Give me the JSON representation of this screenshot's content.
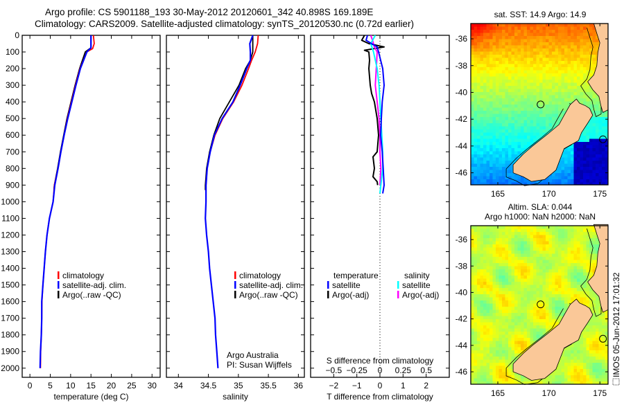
{
  "header": {
    "title_line1": "Argo profile: CS 5901188_193 30-May-2012 20120601_342 40.898S 169.189E",
    "title_line2": "Climatology: CARS2009. Satellite-adjusted climatology: synTS_20120530.nc (0.72d earlier)"
  },
  "colors": {
    "climatology": "#ff0000",
    "satellite": "#0000ff",
    "argo": "#000000",
    "sal_satellite": "#00ffff",
    "sal_argo": "#ff00ff",
    "land": "#fac898"
  },
  "chart_data": [
    {
      "type": "line",
      "id": "temperature",
      "xlabel": "temperature (deg C)",
      "xlim": [
        -1.9,
        32
      ],
      "xticks": [
        0,
        5,
        10,
        15,
        20,
        25,
        30
      ],
      "ylabel": "",
      "ylim": [
        0,
        2055
      ],
      "yticks": [
        0,
        100,
        200,
        300,
        400,
        500,
        600,
        700,
        800,
        900,
        1000,
        1100,
        1200,
        1300,
        1400,
        1500,
        1600,
        1700,
        1800,
        1900,
        2000
      ],
      "yreversed": true,
      "legend": [
        "climatology",
        "satellite-adj. clim.",
        "Argo(..raw -QC)"
      ],
      "series": [
        {
          "name": "climatology",
          "depth": [
            0,
            50,
            80,
            100,
            200,
            300,
            400,
            500,
            600,
            700,
            800,
            900,
            1000,
            1100,
            1200,
            1300,
            1400,
            1500,
            1600,
            1700,
            1800,
            1900,
            2000
          ],
          "values": [
            15.6,
            15.8,
            15.4,
            14.0,
            12.3,
            11.2,
            10.2,
            9.2,
            8.4,
            7.6,
            6.9,
            6.0,
            5.7,
            4.8,
            4.2,
            3.8,
            3.5,
            3.2,
            2.95,
            2.9,
            2.8,
            2.65,
            2.6
          ]
        },
        {
          "name": "satellite-adj. clim.",
          "depth": [
            0,
            75,
            100,
            200,
            300,
            400,
            500,
            600,
            700,
            800,
            900,
            1000,
            1100,
            1200,
            1300,
            1400,
            1500,
            1600,
            1700,
            1800,
            1900,
            2000
          ],
          "values": [
            15.0,
            15.0,
            14.0,
            12.4,
            11.3,
            10.3,
            9.3,
            8.4,
            7.6,
            6.9,
            6.1,
            5.7,
            4.8,
            4.2,
            3.8,
            3.5,
            3.2,
            2.9,
            2.9,
            2.8,
            2.6,
            2.5
          ]
        },
        {
          "name": "Argo(..raw -QC)",
          "depth": [
            0,
            75,
            100,
            200,
            300,
            400,
            500,
            600,
            700,
            800,
            900,
            930
          ],
          "values": [
            15.0,
            15.0,
            13.6,
            12.2,
            11.1,
            10.1,
            9.1,
            8.3,
            7.5,
            6.8,
            6.0,
            5.9
          ]
        }
      ]
    },
    {
      "type": "line",
      "id": "salinity",
      "xlabel": "salinity",
      "xlim": [
        33.8,
        36.1
      ],
      "xticks": [
        34,
        34.5,
        35,
        35.5,
        36
      ],
      "ylim": [
        0,
        2055
      ],
      "yreversed": true,
      "legend": [
        "climatology",
        "satellite-adj. clim.",
        "Argo(..raw -QC)"
      ],
      "annotation": [
        "Argo Australia",
        "PI: Susan Wijffels"
      ],
      "series": [
        {
          "name": "climatology",
          "depth": [
            0,
            50,
            100,
            150,
            200,
            300,
            400,
            500,
            600,
            700,
            800,
            900,
            1000
          ],
          "values": [
            35.33,
            35.32,
            35.28,
            35.22,
            35.17,
            35.06,
            34.92,
            34.74,
            34.61,
            34.53,
            34.48,
            34.46,
            34.46
          ]
        },
        {
          "name": "satellite-adj. clim.",
          "depth": [
            0,
            50,
            100,
            150,
            200,
            300,
            400,
            500,
            600,
            700,
            800,
            900,
            1000,
            1100,
            1200,
            1300,
            1400,
            1500,
            1600,
            1700,
            1800,
            1900,
            2000
          ],
          "values": [
            35.24,
            35.19,
            35.2,
            35.2,
            35.14,
            35.03,
            34.91,
            34.73,
            34.6,
            34.53,
            34.48,
            34.46,
            34.46,
            34.45,
            34.47,
            34.5,
            34.52,
            34.55,
            34.58,
            34.61,
            34.62,
            34.64,
            34.66
          ]
        },
        {
          "name": "Argo(..raw -QC)",
          "depth": [
            0,
            50,
            100,
            150,
            200,
            300,
            400,
            500,
            600,
            700,
            800,
            900,
            930
          ],
          "values": [
            35.24,
            35.24,
            35.24,
            35.2,
            35.12,
            35.01,
            34.85,
            34.69,
            34.59,
            34.52,
            34.47,
            34.45,
            34.45
          ]
        }
      ]
    },
    {
      "type": "line",
      "id": "difference",
      "xlabel": "T difference from climatology",
      "xlim": [
        -3,
        3
      ],
      "xticks": [
        -2,
        -1,
        0,
        1,
        2
      ],
      "x2label": "S difference from climatology",
      "x2lim": [
        -0.75,
        0.75
      ],
      "x2ticks": [
        -0.5,
        -0.25,
        0,
        0.25,
        0.5
      ],
      "ylim": [
        0,
        2055
      ],
      "yreversed": true,
      "legend_titles": [
        "temperature",
        "salinity"
      ],
      "legend": [
        "satellite",
        "Argo(-adj)",
        "satellite",
        "Argo(-adj)"
      ],
      "series": [
        {
          "name": "T satellite",
          "axis": "T",
          "depth": [
            0,
            30,
            70,
            100,
            200,
            300,
            400,
            500,
            600,
            700,
            800,
            900,
            950
          ],
          "values": [
            -0.54,
            -0.6,
            -0.12,
            -0.06,
            0.12,
            0.18,
            0.1,
            0.06,
            0.03,
            0.1,
            0.14,
            0.18,
            0.12
          ]
        },
        {
          "name": "T Argo(-adj)",
          "axis": "T",
          "depth": [
            0,
            30,
            50,
            70,
            90,
            100,
            150,
            200,
            300,
            350,
            400,
            500,
            600,
            700,
            730,
            800,
            850,
            880,
            900
          ],
          "values": [
            -0.67,
            -0.79,
            -0.48,
            0.18,
            -0.67,
            -0.48,
            -0.45,
            -0.48,
            -0.42,
            -0.36,
            -0.24,
            -0.12,
            -0.06,
            -0.12,
            -0.3,
            -0.24,
            -0.3,
            -0.12,
            -0.1
          ]
        },
        {
          "name": "S satellite",
          "axis": "S",
          "depth": [
            0,
            50,
            100,
            200,
            300,
            400,
            500,
            600,
            700,
            800,
            900,
            950
          ],
          "values": [
            -0.05,
            -0.1,
            -0.07,
            -0.03,
            -0.01,
            0.0,
            0.01,
            0.02,
            0.03,
            0.03,
            0.01,
            0.0
          ]
        },
        {
          "name": "S Argo(-adj)",
          "axis": "S",
          "depth": [
            0,
            30,
            70,
            100,
            200,
            300,
            400,
            500,
            600,
            700,
            800,
            900
          ],
          "values": [
            -0.1,
            -0.08,
            -0.06,
            -0.03,
            -0.04,
            -0.05,
            -0.03,
            -0.01,
            0.0,
            0.0,
            0.01,
            0.0
          ]
        }
      ]
    },
    {
      "type": "heatmap",
      "id": "sst-map",
      "title": "sat. SST: 14.9 Argo: 14.9",
      "xlim": [
        162.35,
        175.8
      ],
      "ylim": [
        -46.9,
        -34.86
      ],
      "xticks": [
        165,
        170,
        175
      ],
      "yticks": [
        -36,
        -38,
        -40,
        -42,
        -44,
        -46
      ],
      "argo_position": [
        169.19,
        -40.9
      ],
      "marker2": [
        175.3,
        -43.5
      ]
    },
    {
      "type": "heatmap",
      "id": "sla-map",
      "title_line1": "Altim. SLA: 0.044",
      "title_line2": "Argo h1000: NaN h2000: NaN",
      "xlim": [
        162.35,
        175.8
      ],
      "ylim": [
        -46.94,
        -34.95
      ],
      "xticks": [
        165,
        170,
        175
      ],
      "yticks": [
        -36,
        -38,
        -40,
        -42,
        -44,
        -46
      ],
      "argo_position": [
        169.19,
        -40.9
      ],
      "marker2": [
        175.3,
        -43.5
      ]
    }
  ],
  "coast": {
    "south_island": [
      [
        172.7,
        -40.5
      ],
      [
        173.0,
        -40.8
      ],
      [
        173.6,
        -41.0
      ],
      [
        174.0,
        -41.2
      ],
      [
        174.3,
        -41.7
      ],
      [
        173.8,
        -42.3
      ],
      [
        173.2,
        -43.0
      ],
      [
        172.9,
        -43.6
      ],
      [
        172.2,
        -43.9
      ],
      [
        171.5,
        -44.2
      ],
      [
        171.1,
        -45.0
      ],
      [
        170.7,
        -45.8
      ],
      [
        169.6,
        -46.5
      ],
      [
        168.3,
        -46.65
      ],
      [
        167.5,
        -46.3
      ],
      [
        166.5,
        -46.0
      ],
      [
        166.5,
        -45.4
      ],
      [
        167.5,
        -44.6
      ],
      [
        168.4,
        -44.0
      ],
      [
        169.9,
        -43.1
      ],
      [
        171.0,
        -42.4
      ],
      [
        171.5,
        -41.7
      ],
      [
        172.1,
        -40.9
      ]
    ],
    "north_island": [
      [
        174.4,
        -34.86
      ],
      [
        174.7,
        -35.6
      ],
      [
        175.0,
        -36.3
      ],
      [
        174.8,
        -37.0
      ],
      [
        174.7,
        -38.0
      ],
      [
        174.4,
        -38.7
      ],
      [
        173.8,
        -39.2
      ],
      [
        174.3,
        -39.8
      ],
      [
        174.9,
        -40.3
      ],
      [
        175.1,
        -41.0
      ],
      [
        175.3,
        -41.5
      ],
      [
        175.8,
        -41.3
      ],
      [
        175.8,
        -34.86
      ]
    ]
  },
  "footer": {
    "stamp": "IMOS 05-Jun-2012 17:01:32"
  }
}
